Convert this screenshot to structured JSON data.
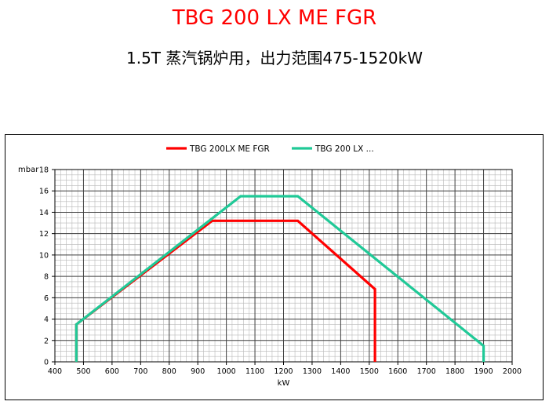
{
  "header": {
    "title": "TBG 200 LX ME FGR",
    "subtitle": "1.5T 蒸汽锅炉用，出力范围475-1520kW"
  },
  "chart_data": {
    "type": "line",
    "title": "",
    "xlabel": "kW",
    "ylabel": "mbar",
    "xlim": [
      400,
      2000
    ],
    "ylim": [
      0,
      18
    ],
    "x_ticks": [
      400,
      500,
      600,
      700,
      800,
      900,
      1000,
      1100,
      1200,
      1300,
      1400,
      1500,
      1600,
      1700,
      1800,
      1900,
      2000
    ],
    "y_ticks": [
      0,
      2,
      4,
      6,
      8,
      10,
      12,
      14,
      16,
      18
    ],
    "grid": true,
    "legend_position": "top",
    "series": [
      {
        "name": "TBG 200LX ME FGR",
        "color": "#ff0000",
        "points": [
          [
            475,
            0
          ],
          [
            475,
            3.5
          ],
          [
            950,
            13.2
          ],
          [
            1250,
            13.2
          ],
          [
            1520,
            6.8
          ],
          [
            1520,
            0
          ]
        ]
      },
      {
        "name": "TBG 200 LX ...",
        "color": "#20c997",
        "points": [
          [
            475,
            0
          ],
          [
            475,
            3.5
          ],
          [
            1050,
            15.5
          ],
          [
            1250,
            15.5
          ],
          [
            1900,
            1.5
          ],
          [
            1900,
            0
          ]
        ]
      }
    ]
  }
}
